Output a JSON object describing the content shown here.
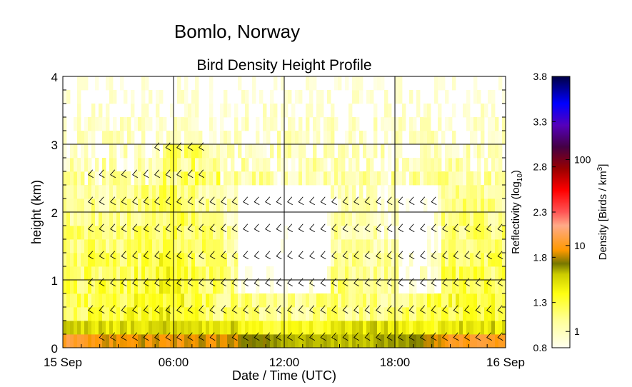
{
  "header": {
    "site_title": "Bomlo, Norway"
  },
  "chart_data": {
    "type": "heatmap",
    "title": "Bird Density Height Profile",
    "xlabel": "Date / Time (UTC)",
    "ylabel": "height (km)",
    "x_ticks": [
      "15 Sep",
      "06:00",
      "12:00",
      "18:00",
      "16 Sep"
    ],
    "x_tick_hours": [
      0,
      6,
      12,
      18,
      24
    ],
    "xlim_hours": [
      0,
      24
    ],
    "y_ticks": [
      "0",
      "1",
      "2",
      "3",
      "4"
    ],
    "ylim_km": [
      0,
      4
    ],
    "grid": true,
    "colorbar": {
      "left_label": "Reflectivity (log",
      "left_label_sub": "10",
      "left_label_end": ")",
      "left_ticks": [
        "0.8",
        "1.3",
        "1.8",
        "2.3",
        "2.8",
        "3.3",
        "3.8"
      ],
      "left_range": [
        0.8,
        3.8
      ],
      "right_label": "Density [Birds / km",
      "right_label_sup": "3",
      "right_label_end": "]",
      "right_ticks": [
        "1",
        "10",
        "100"
      ],
      "right_tick_log10": [
        0,
        1,
        2
      ]
    },
    "density_rows_km": [
      0.1,
      0.3,
      0.5,
      0.7,
      0.9,
      1.1,
      1.3,
      1.5,
      1.7,
      1.9,
      2.1,
      2.3,
      2.5,
      2.7,
      2.9,
      3.1,
      3.3,
      3.5,
      3.7,
      3.9
    ],
    "density_profile_by_period": {
      "hours": [
        0,
        3,
        6,
        9,
        12,
        15,
        18,
        21,
        24
      ],
      "low_level_reflectivity": [
        1.9,
        1.75,
        1.8,
        1.75,
        1.6,
        1.55,
        1.6,
        1.85,
        1.85
      ],
      "mid_level_reflectivity": [
        1.3,
        1.3,
        1.45,
        1.2,
        1.1,
        1.2,
        1.15,
        1.35,
        1.3
      ]
    },
    "wind_barb_levels_km": [
      0.15,
      0.55,
      0.95,
      1.35,
      1.75,
      2.15,
      2.55,
      2.95
    ]
  }
}
